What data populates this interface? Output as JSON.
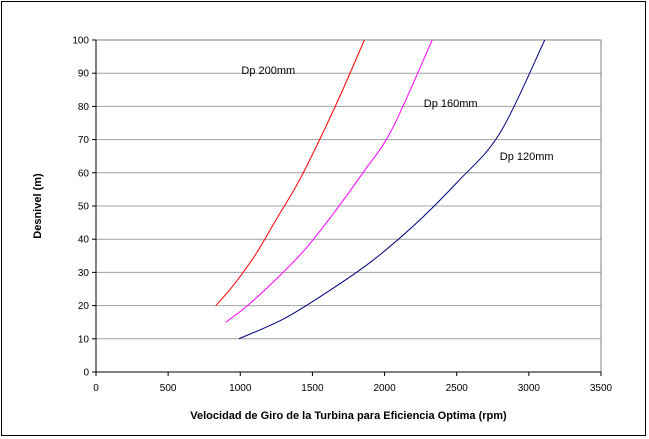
{
  "chart_data": {
    "type": "line",
    "title": "",
    "xlabel": "Velocidad de Giro de la Turbina para Eficiencia Optima (rpm)",
    "ylabel": "Desnivel (m)",
    "xlim": [
      0,
      3500
    ],
    "ylim": [
      0,
      100
    ],
    "xticks": [
      0,
      500,
      1000,
      1500,
      2000,
      2500,
      3000,
      3500
    ],
    "yticks": [
      0,
      10,
      20,
      30,
      40,
      50,
      60,
      70,
      80,
      90,
      100
    ],
    "grid": "horizontal",
    "legend": "none",
    "series": [
      {
        "name": "Dp 200mm",
        "color": "#ff0000",
        "x": [
          830,
          950,
          1100,
          1250,
          1400,
          1550,
          1700,
          1860
        ],
        "y": [
          20,
          26,
          35,
          46,
          57,
          70,
          84,
          100
        ]
      },
      {
        "name": "Dp 160mm",
        "color": "#ff00ff",
        "x": [
          900,
          1050,
          1250,
          1450,
          1650,
          1850,
          2050,
          2330
        ],
        "y": [
          15,
          20,
          28,
          37,
          48,
          60,
          73,
          100
        ]
      },
      {
        "name": "Dp 120mm",
        "color": "#000080",
        "x": [
          990,
          1300,
          1600,
          1900,
          2200,
          2500,
          2800,
          3110
        ],
        "y": [
          10,
          16,
          24,
          33,
          44,
          57,
          72,
          100
        ]
      }
    ]
  }
}
